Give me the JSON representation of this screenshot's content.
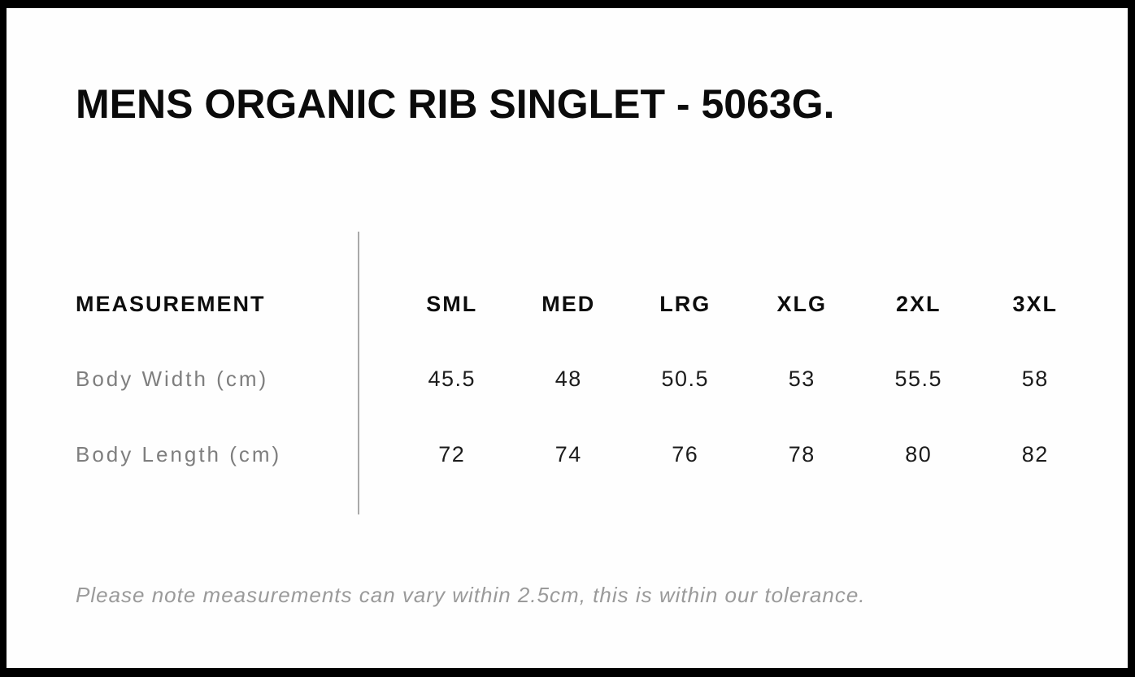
{
  "title": "MENS ORGANIC RIB SINGLET - 5063G.",
  "note": "Please note measurements can vary within 2.5cm, this is within our tolerance.",
  "table": {
    "header_label": "MEASUREMENT",
    "size_headers": [
      "SML",
      "MED",
      "LRG",
      "XLG",
      "2XL",
      "3XL"
    ],
    "rows": [
      {
        "label": "Body Width (cm)",
        "values": [
          "45.5",
          "48",
          "50.5",
          "53",
          "55.5",
          "58"
        ]
      },
      {
        "label": "Body Length (cm)",
        "values": [
          "72",
          "74",
          "76",
          "78",
          "80",
          "82"
        ]
      }
    ]
  },
  "chart_data": {
    "type": "table",
    "title": "MENS ORGANIC RIB SINGLET - 5063G.",
    "columns": [
      "MEASUREMENT",
      "SML",
      "MED",
      "LRG",
      "XLG",
      "2XL",
      "3XL"
    ],
    "rows": [
      [
        "Body Width (cm)",
        45.5,
        48,
        50.5,
        53,
        55.5,
        58
      ],
      [
        "Body Length (cm)",
        72,
        74,
        76,
        78,
        80,
        82
      ]
    ],
    "footnote": "Please note measurements can vary within 2.5cm, this is within our tolerance."
  },
  "colors": {
    "frame": "#000000",
    "page_background": "#fefefe",
    "heading_text": "#0b0b0b",
    "label_gray": "#7e7e7e",
    "value_dark": "#1c1c1c",
    "note_gray": "#9a9a9a",
    "divider_gray": "#a9a9a9"
  }
}
